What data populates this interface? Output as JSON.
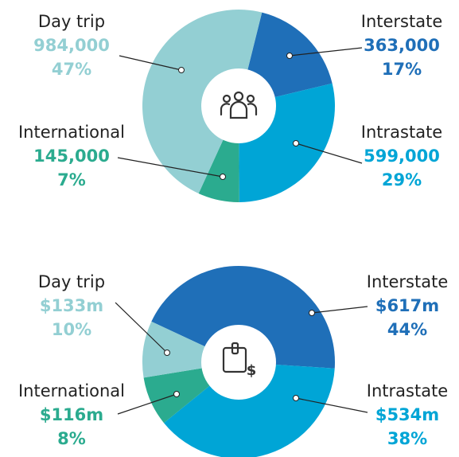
{
  "chart_data": [
    {
      "type": "donut",
      "categories": [
        "Interstate",
        "Intrastate",
        "International",
        "Day trip"
      ],
      "values": [
        363000,
        599000,
        145000,
        984000
      ],
      "value_labels": [
        "363,000",
        "599,000",
        "145,000",
        "984,000"
      ],
      "shares": [
        17,
        29,
        7,
        47
      ],
      "share_labels": [
        "17%",
        "29%",
        "7%",
        "47%"
      ],
      "colors": [
        "#1f6fb8",
        "#00a5d6",
        "#2bab8f",
        "#93cfd3"
      ]
    },
    {
      "type": "donut",
      "categories": [
        "Interstate",
        "Intrastate",
        "International",
        "Day trip"
      ],
      "values": [
        617,
        534,
        116,
        133
      ],
      "value_labels": [
        "$617m",
        "$534m",
        "$116m",
        "$133m"
      ],
      "shares": [
        44,
        38,
        8,
        10
      ],
      "share_labels": [
        "44%",
        "38%",
        "8%",
        "10%"
      ],
      "colors": [
        "#1f6fb8",
        "#00a5d6",
        "#2bab8f",
        "#93cfd3"
      ]
    }
  ]
}
